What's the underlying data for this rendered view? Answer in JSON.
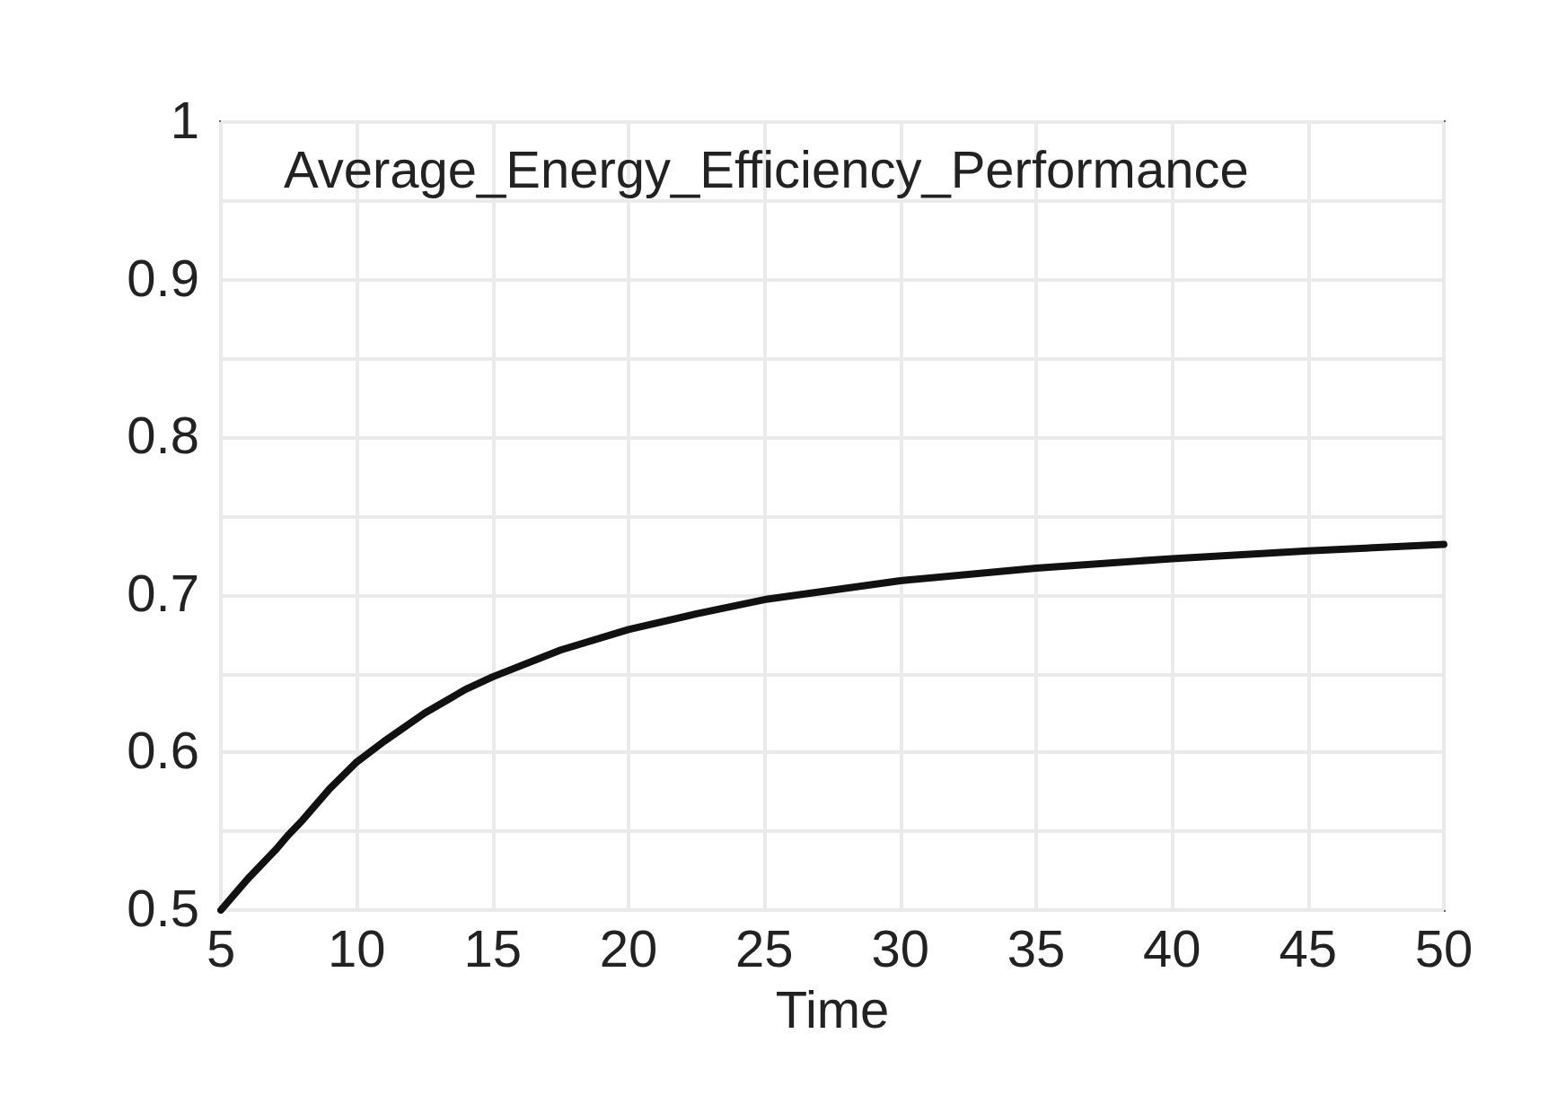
{
  "chart_data": {
    "type": "line",
    "title": "Average_Energy_Efficiency_Performance",
    "xlabel": "Time",
    "x": [
      5,
      6,
      7,
      7.5,
      8,
      9,
      10,
      11,
      12.5,
      14,
      15,
      17.5,
      20,
      22.5,
      25,
      27.5,
      30,
      35,
      40,
      45,
      50
    ],
    "series": [
      {
        "color": "#111111",
        "values": [
          0.5,
          0.52,
          0.538,
          0.548,
          0.557,
          0.577,
          0.594,
          0.607,
          0.625,
          0.64,
          0.648,
          0.665,
          0.678,
          0.688,
          0.697,
          0.703,
          0.709,
          0.717,
          0.723,
          0.728,
          0.732
        ]
      }
    ],
    "xlim": [
      5,
      50
    ],
    "xticks": [
      5,
      10,
      15,
      20,
      25,
      30,
      35,
      40,
      45,
      50
    ],
    "ylim": [
      0.5,
      1
    ],
    "yticks": [
      0.5,
      {
        "value": 0.55,
        "label": null
      },
      0.6,
      {
        "value": 0.65,
        "label": null
      },
      0.7,
      {
        "value": 0.75,
        "label": null
      },
      0.8,
      {
        "value": 0.85,
        "label": null
      },
      0.9,
      {
        "value": 0.95,
        "label": null
      },
      1
    ],
    "grid": true,
    "marker": "none",
    "line_style": "solid"
  }
}
